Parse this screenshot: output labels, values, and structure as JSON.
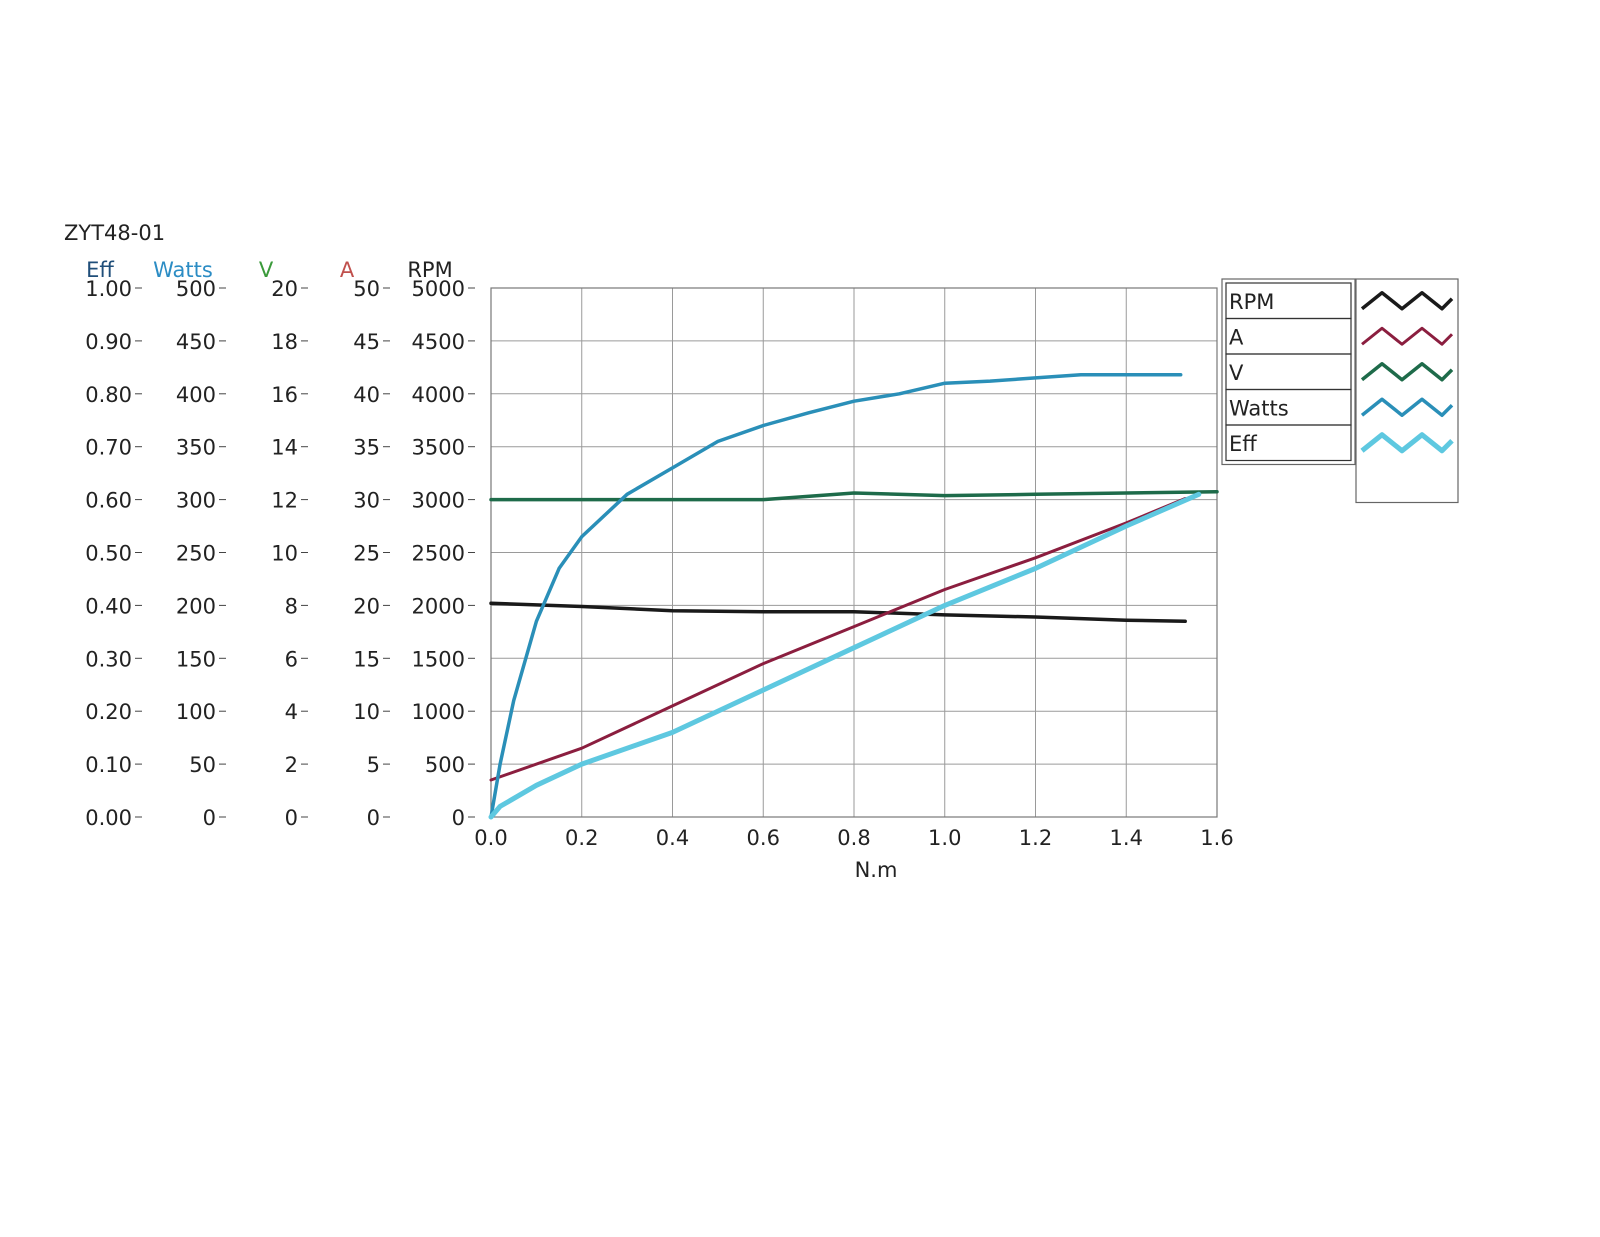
{
  "chart_data": {
    "type": "line",
    "title": "ZYT48-01",
    "xlabel": "N.m",
    "xlim": [
      0,
      1.6
    ],
    "x_ticks": [
      "0.0",
      "0.2",
      "0.4",
      "0.6",
      "0.8",
      "1.0",
      "1.2",
      "1.4",
      "1.6"
    ],
    "grid": true,
    "legend_position": "right",
    "axes": [
      {
        "key": "eff",
        "label": "Eff",
        "color": "#1f4e79",
        "ylim": [
          0,
          1.0
        ],
        "ticks": [
          "0.00",
          "0.10",
          "0.20",
          "0.30",
          "0.40",
          "0.50",
          "0.60",
          "0.70",
          "0.80",
          "0.90",
          "1.00"
        ]
      },
      {
        "key": "watts",
        "label": "Watts",
        "color": "#2b8cc4",
        "ylim": [
          0,
          500
        ],
        "ticks": [
          "0",
          "50",
          "100",
          "150",
          "200",
          "250",
          "300",
          "350",
          "400",
          "450",
          "500"
        ]
      },
      {
        "key": "v",
        "label": "V",
        "color": "#3a9a3a",
        "ylim": [
          0,
          20
        ],
        "ticks": [
          "0",
          "2",
          "4",
          "6",
          "8",
          "10",
          "12",
          "14",
          "16",
          "18",
          "20"
        ]
      },
      {
        "key": "a",
        "label": "A",
        "color": "#c0504d",
        "ylim": [
          0,
          50
        ],
        "ticks": [
          "0",
          "5",
          "10",
          "15",
          "20",
          "25",
          "30",
          "35",
          "40",
          "45",
          "50"
        ]
      },
      {
        "key": "rpm",
        "label": "RPM",
        "color": "#222222",
        "ylim": [
          0,
          5000
        ],
        "ticks": [
          "0",
          "500",
          "1000",
          "1500",
          "2000",
          "2500",
          "3000",
          "3500",
          "4000",
          "4500",
          "5000"
        ]
      }
    ],
    "series": [
      {
        "name": "RPM",
        "axis": "rpm",
        "color": "#1a1a1a",
        "width": 3.5,
        "x": [
          0.0,
          0.2,
          0.4,
          0.6,
          0.8,
          1.0,
          1.2,
          1.4,
          1.53
        ],
        "y": [
          2020,
          1990,
          1950,
          1940,
          1940,
          1910,
          1890,
          1860,
          1850
        ]
      },
      {
        "name": "A",
        "axis": "a",
        "color": "#8b1e3f",
        "width": 3,
        "x": [
          0.0,
          0.2,
          0.4,
          0.6,
          0.8,
          1.0,
          1.2,
          1.4,
          1.53
        ],
        "y": [
          3.5,
          6.5,
          10.5,
          14.5,
          18.0,
          21.5,
          24.5,
          27.8,
          30.1
        ]
      },
      {
        "name": "V",
        "axis": "v",
        "color": "#1e6b4a",
        "width": 3.5,
        "x": [
          0.0,
          0.2,
          0.4,
          0.6,
          0.8,
          1.0,
          1.2,
          1.4,
          1.6
        ],
        "y": [
          12.0,
          12.0,
          12.0,
          12.0,
          12.25,
          12.15,
          12.2,
          12.25,
          12.3
        ]
      },
      {
        "name": "Watts",
        "axis": "watts",
        "color": "#2a8fb8",
        "width": 3.5,
        "x": [
          0.0,
          0.02,
          0.05,
          0.1,
          0.15,
          0.2,
          0.3,
          0.4,
          0.5,
          0.6,
          0.7,
          0.8,
          0.9,
          1.0,
          1.1,
          1.2,
          1.3,
          1.4,
          1.52
        ],
        "y": [
          0,
          50,
          110,
          185,
          235,
          265,
          305,
          330,
          355,
          370,
          382,
          393,
          400,
          410,
          412,
          415,
          418,
          418,
          418
        ]
      },
      {
        "name": "Eff",
        "axis": "eff",
        "color": "#5ec8e0",
        "width": 5,
        "x": [
          0.0,
          0.02,
          0.1,
          0.2,
          0.4,
          0.6,
          0.8,
          1.0,
          1.2,
          1.4,
          1.56
        ],
        "y": [
          0.0,
          0.02,
          0.06,
          0.1,
          0.16,
          0.24,
          0.32,
          0.4,
          0.47,
          0.55,
          0.61
        ]
      }
    ]
  }
}
